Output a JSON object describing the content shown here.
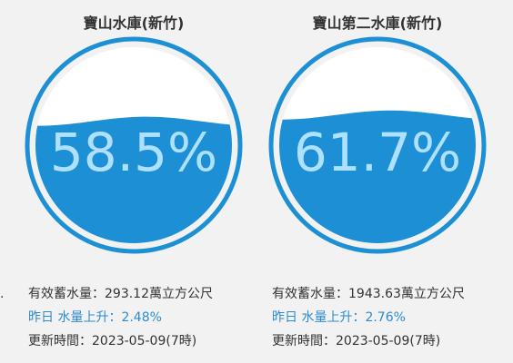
{
  "colors": {
    "water": "#1d8fd5",
    "ring": "#1d8fd5",
    "text_on_white": "#1d8fd5",
    "text_on_water": "#aee0ff",
    "accent_text": "#2e8bd0"
  },
  "reservoirs": [
    {
      "title": "寶山水庫(新竹)",
      "percent": 58.5,
      "percent_label": "58.5%",
      "volume_label": "有效蓄水量：293.12萬立方公尺",
      "change_label": "昨日 水量上升：2.48%",
      "time_label": "更新時間：2023-05-09(7時)"
    },
    {
      "title": "寶山第二水庫(新竹)",
      "percent": 61.7,
      "percent_label": "61.7%",
      "volume_label": "有效蓄水量：1943.63萬立方公尺",
      "change_label": "昨日 水量上升：2.76%",
      "time_label": "更新時間：2023-05-09(7時)"
    }
  ]
}
